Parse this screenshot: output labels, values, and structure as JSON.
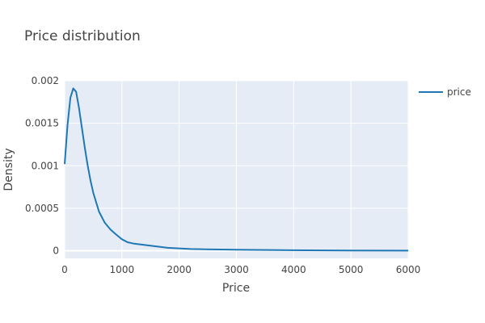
{
  "chart_data": {
    "type": "line",
    "title": "Price distribution",
    "xlabel": "Price",
    "ylabel": "Density",
    "xlim": [
      0,
      6000
    ],
    "ylim": [
      -9e-05,
      0.002
    ],
    "x_ticks": [
      0,
      1000,
      2000,
      3000,
      4000,
      5000,
      6000
    ],
    "x_tick_labels": [
      "0",
      "1000",
      "2000",
      "3000",
      "4000",
      "5000",
      "6000"
    ],
    "y_ticks": [
      0,
      0.0005,
      0.001,
      0.0015,
      0.002
    ],
    "y_tick_labels": [
      "0",
      "0.0005",
      "0.001",
      "0.0015",
      "0.002"
    ],
    "grid": true,
    "legend_position": "top-right",
    "colors": {
      "series": "#1f77b4",
      "plot_bg": "#e5ecf6",
      "grid": "#ffffff"
    },
    "series": [
      {
        "name": "price",
        "x": [
          0,
          50,
          100,
          150,
          200,
          250,
          300,
          350,
          400,
          450,
          500,
          600,
          700,
          800,
          900,
          1000,
          1100,
          1200,
          1500,
          1800,
          2200,
          3000,
          4000,
          5000,
          6000
        ],
        "y": [
          0.00102,
          0.00148,
          0.0018,
          0.00191,
          0.00187,
          0.00168,
          0.00145,
          0.00122,
          0.00101,
          0.00083,
          0.00068,
          0.00046,
          0.00033,
          0.00025,
          0.00019,
          0.000135,
          0.0001,
          8.5e-05,
          6e-05,
          3.5e-05,
          2e-05,
          1.2e-05,
          6e-06,
          3e-06,
          1e-06
        ]
      }
    ]
  }
}
